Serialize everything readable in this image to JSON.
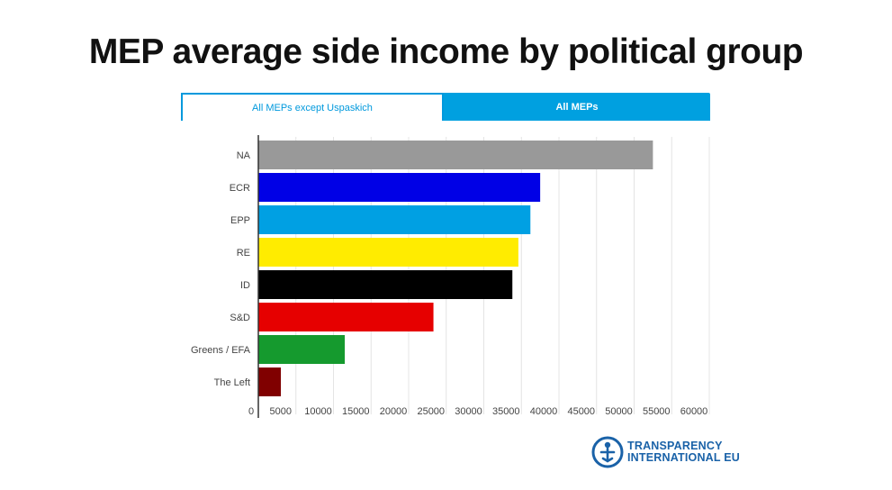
{
  "title": "MEP average side income by political group",
  "tabs": [
    {
      "label": "All MEPs except Uspaskich",
      "active": true
    },
    {
      "label": "All MEPs",
      "active": false
    }
  ],
  "logo": {
    "line1": "TRANSPARENCY",
    "line2": "INTERNATIONAL EU"
  },
  "colors": {
    "accent": "#00a0e0",
    "logo": "#1a62a8"
  },
  "chart_data": {
    "type": "bar",
    "orientation": "horizontal",
    "title": "MEP average side income by political group",
    "categories": [
      "NA",
      "ECR",
      "EPP",
      "RE",
      "ID",
      "S&D",
      "Greens / EFA",
      "The Left"
    ],
    "values": [
      52500,
      37500,
      36200,
      34600,
      33800,
      23300,
      11500,
      3000
    ],
    "colors": [
      "#999999",
      "#0000e6",
      "#00a0e3",
      "#ffec00",
      "#000000",
      "#e60000",
      "#159a2e",
      "#800000"
    ],
    "xlim": [
      0,
      60000
    ],
    "xticks": [
      "0",
      "5000",
      "10000",
      "15000",
      "20000",
      "25000",
      "30000",
      "35000",
      "40000",
      "45000",
      "50000",
      "55000",
      "60000"
    ],
    "grid": true,
    "legend": "none"
  }
}
